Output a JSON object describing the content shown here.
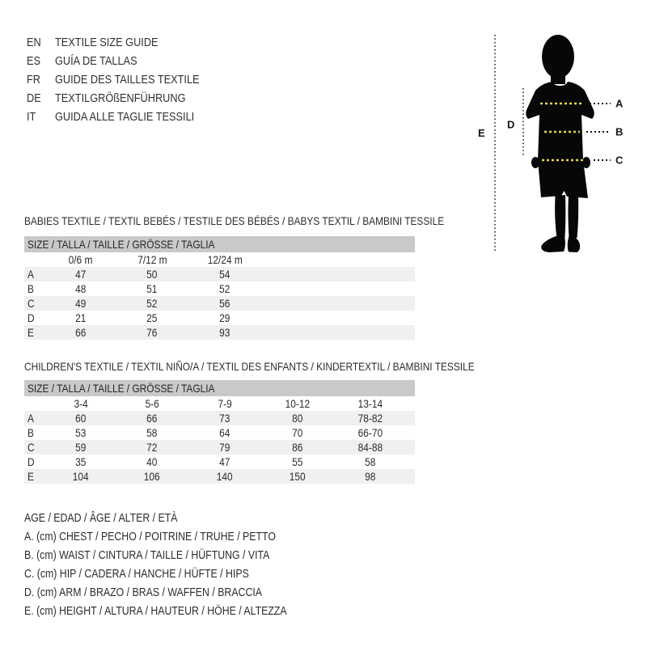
{
  "languages": [
    {
      "code": "EN",
      "label": "TEXTILE SIZE GUIDE"
    },
    {
      "code": "ES",
      "label": "GUÍA DE TALLAS"
    },
    {
      "code": "FR",
      "label": "GUIDE DES TAILLES TEXTILE"
    },
    {
      "code": "DE",
      "label": "TEXTILGRÖßENFÜHRUNG"
    },
    {
      "code": "IT",
      "label": "GUIDA ALLE TAGLIE TESSILI"
    }
  ],
  "figure": {
    "labels": {
      "chest": "A",
      "waist": "B",
      "hip": "C",
      "arm": "D",
      "height": "E"
    }
  },
  "colors": {
    "dash_yellow": "#e5d54b",
    "header_bar_gray": "#c9c9c9",
    "row_alt_gray": "#f0f0f0",
    "silhouette_black": "#070707"
  },
  "babies": {
    "heading": "BABIES TEXTILE / TEXTIL BEBÉS / TESTILE DES BÉBÉS / BABYS TEXTIL / BAMBINI TESSILE",
    "size_header": "SIZE / TALLA / TAILLE / GRÖSSE / TAGLIA",
    "columns": [
      "0/6 m",
      "7/12 m",
      "12/24 m"
    ],
    "rows": [
      {
        "label": "A",
        "values": [
          "47",
          "50",
          "54"
        ]
      },
      {
        "label": "B",
        "values": [
          "48",
          "51",
          "52"
        ]
      },
      {
        "label": "C",
        "values": [
          "49",
          "52",
          "56"
        ]
      },
      {
        "label": "D",
        "values": [
          "21",
          "25",
          "29"
        ]
      },
      {
        "label": "E",
        "values": [
          "66",
          "76",
          "93"
        ]
      }
    ]
  },
  "children": {
    "heading": "CHILDREN'S TEXTILE / TEXTIL NIÑO/A / TEXTIL DES ENFANTS / KINDERTEXTIL / BAMBINI TESSILE",
    "size_header": "SIZE / TALLA / TAILLE / GRÖSSE / TAGLIA",
    "columns": [
      "3-4",
      "5-6",
      "7-9",
      "10-12",
      "13-14"
    ],
    "rows": [
      {
        "label": "A",
        "values": [
          "60",
          "66",
          "73",
          "80",
          "78-82"
        ]
      },
      {
        "label": "B",
        "values": [
          "53",
          "58",
          "64",
          "70",
          "66-70"
        ]
      },
      {
        "label": "C",
        "values": [
          "59",
          "72",
          "79",
          "86",
          "84-88"
        ]
      },
      {
        "label": "D",
        "values": [
          "35",
          "40",
          "47",
          "55",
          "58"
        ]
      },
      {
        "label": "E",
        "values": [
          "104",
          "106",
          "140",
          "150",
          "98"
        ]
      }
    ]
  },
  "legend": {
    "lines": [
      "AGE / EDAD / ÂGE / ALTER / ETÀ",
      "A. (cm) CHEST / PECHO / POITRINE / TRUHE / PETTO",
      "B. (cm) WAIST / CINTURA / TAILLE / HÜFTUNG / VITA",
      "C. (cm) HIP / CADERA / HANCHE / HÜFTE / HIPS",
      "D. (cm) ARM / BRAZO / BRAS / WAFFEN / BRACCIA",
      "E. (cm) HEIGHT / ALTURA / HAUTEUR / HÖHE / ALTEZZA"
    ]
  }
}
